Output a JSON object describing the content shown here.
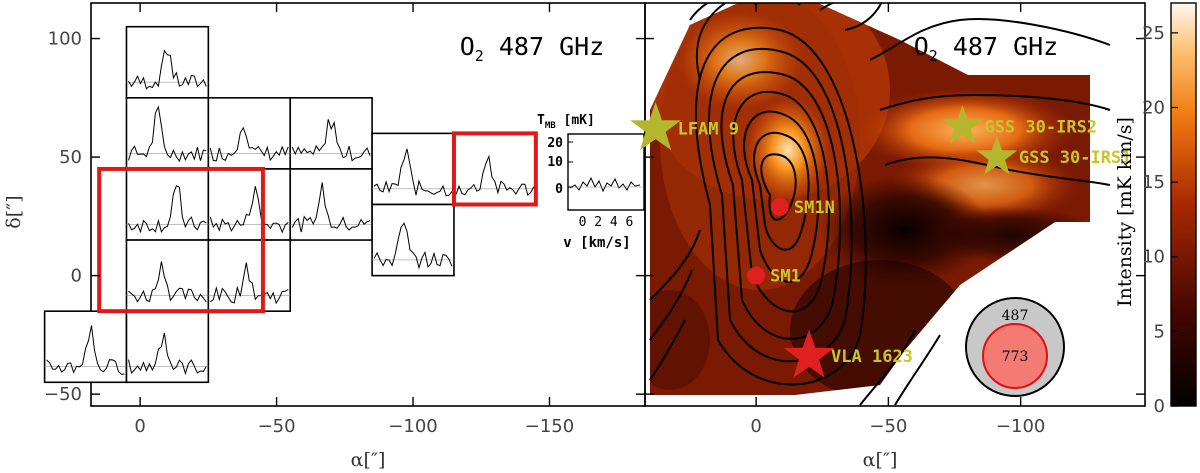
{
  "chart_data": [
    {
      "type": "spectra-grid",
      "title": "O₂ 487 GHz",
      "xlabel": "α[″]",
      "ylabel": "δ[″]",
      "xlim": [
        18,
        -185
      ],
      "ylim": [
        -55,
        115
      ],
      "xticks": [
        0,
        -50,
        -100,
        -150
      ],
      "yticks": [
        100,
        50,
        0,
        -50
      ],
      "tick_labels_x": [
        "0",
        "−50",
        "−100",
        "−150"
      ],
      "tick_labels_y": [
        "100",
        "50",
        "0",
        "−50"
      ],
      "cell_size": 30,
      "spectra_centers": [
        {
          "ra": -10,
          "dec": 90
        },
        {
          "ra": -10,
          "dec": 60
        },
        {
          "ra": -40,
          "dec": 60
        },
        {
          "ra": -70,
          "dec": 60
        },
        {
          "ra": -10,
          "dec": 30
        },
        {
          "ra": -40,
          "dec": 30
        },
        {
          "ra": -70,
          "dec": 30
        },
        {
          "ra": -10,
          "dec": 0
        },
        {
          "ra": -40,
          "dec": 0
        },
        {
          "ra": -100,
          "dec": 45
        },
        {
          "ra": -100,
          "dec": 15
        },
        {
          "ra": -130,
          "dec": 45
        },
        {
          "ra": 20,
          "dec": -30
        },
        {
          "ra": -10,
          "dec": -30
        }
      ],
      "highlight_boxes": [
        {
          "ra_range": [
            15,
            -45
          ],
          "dec_range": [
            -15,
            45
          ]
        },
        {
          "ra_range": [
            -115,
            -145
          ],
          "dec_range": [
            30,
            60
          ]
        }
      ],
      "inset": {
        "ylabel": "T_MB [mK]",
        "yticks": [
          "20",
          "10",
          "0"
        ],
        "xticks": "0 2 4 6",
        "xlabel": "v [km/s]"
      }
    },
    {
      "type": "heatmap",
      "title": "O₂ 487 GHz",
      "xlabel": "α[″]",
      "xlim": [
        42,
        -147
      ],
      "ylim": [
        -55,
        115
      ],
      "xticks": [
        0,
        -50,
        -100
      ],
      "tick_labels_x": [
        "0",
        "−50",
        "−100"
      ],
      "colorbar": {
        "label": "Intensity [mK km/s]",
        "range": [
          0,
          27
        ],
        "ticks": [
          0,
          5,
          10,
          15,
          20,
          25
        ],
        "tick_labels": [
          "0",
          "5",
          "10",
          "15",
          "20",
          "25"
        ]
      },
      "sources": [
        {
          "name": "LFAM 9",
          "ra": 38,
          "dec": 62,
          "marker": "star",
          "color": "#b5b52e"
        },
        {
          "name": "GSS 30-IRS2",
          "ra": -78,
          "dec": 63,
          "marker": "star",
          "color": "#b5b52e"
        },
        {
          "name": "GSS 30-IRS1",
          "ra": -91,
          "dec": 50,
          "marker": "star",
          "color": "#b5b52e"
        },
        {
          "name": "SM1N",
          "ra": -9,
          "dec": 29,
          "marker": "circle",
          "color": "#e02020"
        },
        {
          "name": "SM1",
          "ra": 0,
          "dec": 0,
          "marker": "circle",
          "color": "#e02020"
        },
        {
          "name": "VLA 1623",
          "ra": -20,
          "dec": -34,
          "marker": "star",
          "color": "#e02020"
        }
      ],
      "beams": [
        {
          "label": "487",
          "fill": "#c8c8c8"
        },
        {
          "label": "773",
          "fill": "#f37b74"
        }
      ]
    }
  ]
}
